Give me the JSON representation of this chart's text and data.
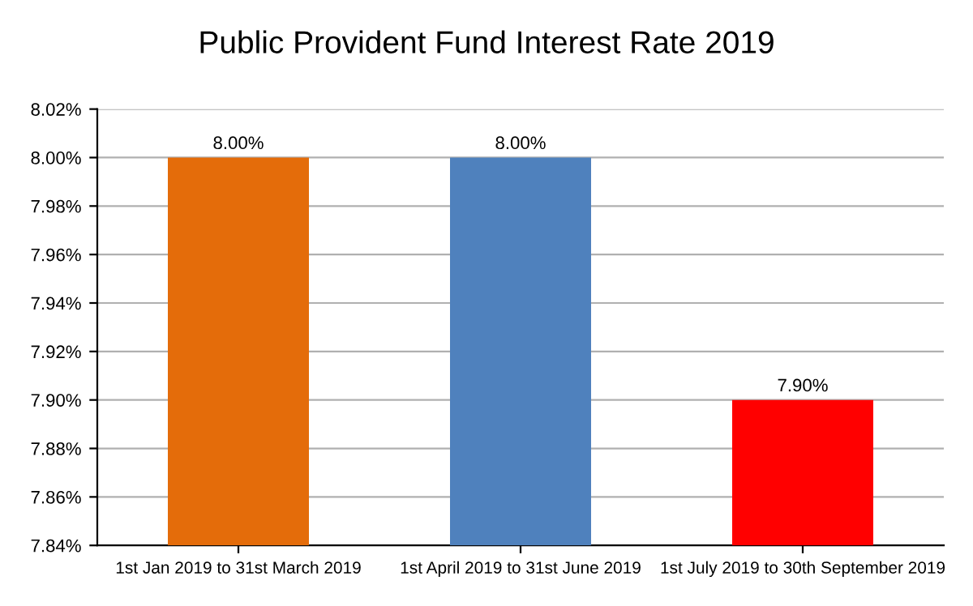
{
  "chart_data": {
    "type": "bar",
    "title": "Public Provident Fund Interest Rate 2019",
    "categories": [
      "1st Jan 2019 to 31st March 2019",
      "1st April 2019 to 31st June 2019",
      "1st July 2019 to 30th September 2019"
    ],
    "values": [
      8.0,
      8.0,
      7.9
    ],
    "colors": [
      "#e46c0a",
      "#4f81bd",
      "#ff0000"
    ],
    "value_labels": [
      "8.00%",
      "8.00%",
      "7.90%"
    ],
    "ylim": [
      7.84,
      8.02
    ],
    "yticks": [
      {
        "value": 7.84,
        "label": "7.84%"
      },
      {
        "value": 7.86,
        "label": "7.86%"
      },
      {
        "value": 7.88,
        "label": "7.88%"
      },
      {
        "value": 7.9,
        "label": "7.90%"
      },
      {
        "value": 7.92,
        "label": "7.92%"
      },
      {
        "value": 7.94,
        "label": "7.94%"
      },
      {
        "value": 7.96,
        "label": "7.96%"
      },
      {
        "value": 7.98,
        "label": "7.98%"
      },
      {
        "value": 8.0,
        "label": "8.00%"
      },
      {
        "value": 8.02,
        "label": "8.02%"
      }
    ],
    "grid": "y",
    "legend": false
  }
}
